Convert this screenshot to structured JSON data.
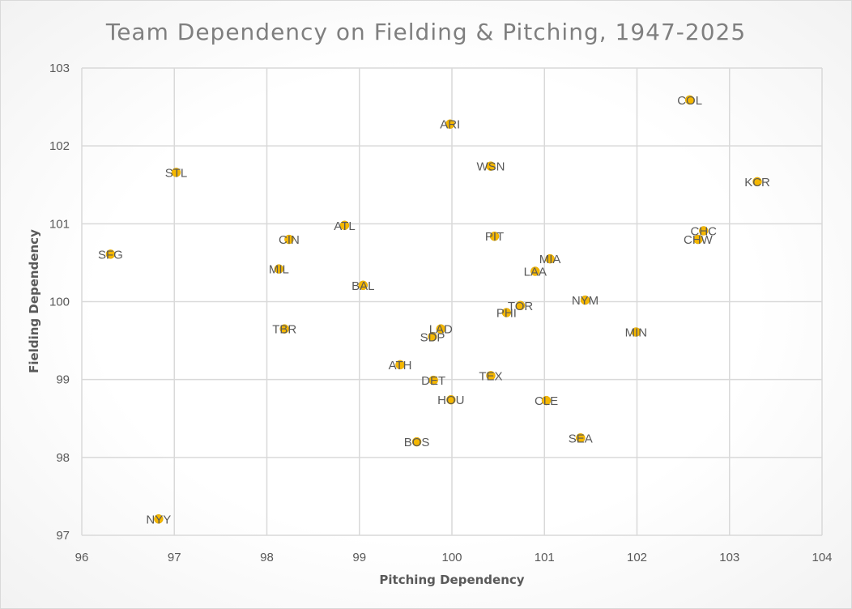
{
  "colors": {
    "marker": "#f5b700",
    "grid": "#d9d9d9",
    "text": "#595959",
    "title": "#7f7f7f"
  },
  "chart_data": {
    "type": "scatter",
    "title": "Team Dependency on Fielding & Pitching, 1947-2025",
    "xlabel": "Pitching Dependency",
    "ylabel": "Fielding Dependency",
    "xlim": [
      96,
      104
    ],
    "ylim": [
      97,
      103
    ],
    "xticks": [
      96,
      97,
      98,
      99,
      100,
      101,
      102,
      103,
      104
    ],
    "yticks": [
      97,
      98,
      99,
      100,
      101,
      102,
      103
    ],
    "grid": true,
    "legend": "none",
    "points": [
      {
        "label": "COL",
        "x": 102.57,
        "y": 102.59
      },
      {
        "label": "ARI",
        "x": 99.98,
        "y": 102.28
      },
      {
        "label": "WSN",
        "x": 100.42,
        "y": 101.74
      },
      {
        "label": "STL",
        "x": 97.02,
        "y": 101.66
      },
      {
        "label": "KCR",
        "x": 103.3,
        "y": 101.54
      },
      {
        "label": "ATL",
        "x": 98.84,
        "y": 100.98
      },
      {
        "label": "CHC",
        "x": 102.72,
        "y": 100.91
      },
      {
        "label": "PIT",
        "x": 100.46,
        "y": 100.84
      },
      {
        "label": "CIN",
        "x": 98.24,
        "y": 100.8
      },
      {
        "label": "CHW",
        "x": 102.66,
        "y": 100.8
      },
      {
        "label": "SFG",
        "x": 96.31,
        "y": 100.61
      },
      {
        "label": "MIA",
        "x": 101.06,
        "y": 100.55
      },
      {
        "label": "MIL",
        "x": 98.13,
        "y": 100.42
      },
      {
        "label": "LAA",
        "x": 100.9,
        "y": 100.39
      },
      {
        "label": "BAL",
        "x": 99.04,
        "y": 100.21
      },
      {
        "label": "NYM",
        "x": 101.44,
        "y": 100.02
      },
      {
        "label": "TOR",
        "x": 100.74,
        "y": 99.95
      },
      {
        "label": "PHI",
        "x": 100.59,
        "y": 99.86
      },
      {
        "label": "TBR",
        "x": 98.19,
        "y": 99.65
      },
      {
        "label": "LAD",
        "x": 99.88,
        "y": 99.65
      },
      {
        "label": "MIN",
        "x": 101.99,
        "y": 99.61
      },
      {
        "label": "SDP",
        "x": 99.79,
        "y": 99.55
      },
      {
        "label": "ATH",
        "x": 99.44,
        "y": 99.19
      },
      {
        "label": "TEX",
        "x": 100.42,
        "y": 99.05
      },
      {
        "label": "DET",
        "x": 99.8,
        "y": 98.99
      },
      {
        "label": "HOU",
        "x": 99.99,
        "y": 98.74
      },
      {
        "label": "CLE",
        "x": 101.02,
        "y": 98.73
      },
      {
        "label": "SEA",
        "x": 101.39,
        "y": 98.25
      },
      {
        "label": "BOS",
        "x": 99.62,
        "y": 98.2
      },
      {
        "label": "NYY",
        "x": 96.83,
        "y": 97.21
      }
    ]
  }
}
